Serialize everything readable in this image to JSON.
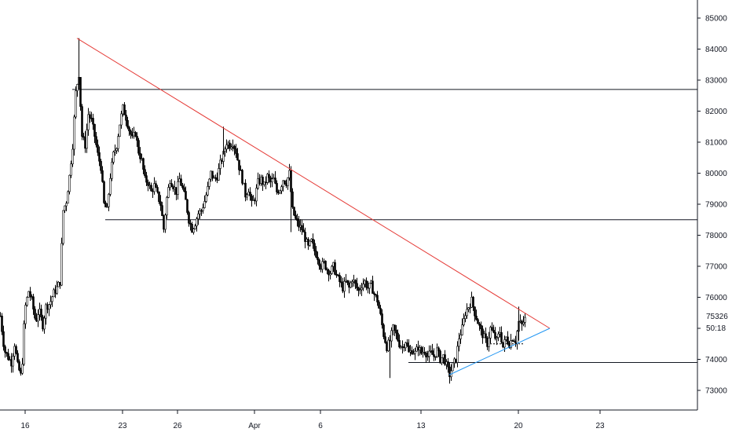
{
  "chart_data": {
    "type": "candlestick",
    "title": "",
    "xlabel": "",
    "ylabel": "",
    "ylim": [
      72000,
      85500
    ],
    "x_tick_labels": [
      "16",
      "23",
      "26",
      "Apr",
      "6",
      "13",
      "20",
      "23"
    ],
    "y_tick_labels": [
      "73000",
      "74000",
      "75000",
      "76000",
      "77000",
      "78000",
      "79000",
      "80000",
      "81000",
      "82000",
      "83000",
      "84000",
      "85000"
    ],
    "y_ticks": [
      73000,
      74000,
      75000,
      76000,
      77000,
      78000,
      79000,
      80000,
      81000,
      82000,
      83000,
      84000,
      85000
    ],
    "last_price": "75326",
    "countdown": "50:18",
    "grid": false,
    "colors": {
      "candle": "#000000",
      "resistance_line": "#e53935",
      "support_line": "#2196f3",
      "horizontal_levels": "#131722",
      "price_tag_bg": "#ffffff"
    },
    "horizontal_levels": [
      82700,
      78500,
      73900
    ],
    "close_path": [
      [
        0,
        75400
      ],
      [
        5,
        74300
      ],
      [
        9,
        74100
      ],
      [
        14,
        73900
      ],
      [
        18,
        74500
      ],
      [
        22,
        73800
      ],
      [
        27,
        73400
      ],
      [
        31,
        75600
      ],
      [
        36,
        76200
      ],
      [
        40,
        75900
      ],
      [
        45,
        75200
      ],
      [
        49,
        75600
      ],
      [
        54,
        75100
      ],
      [
        58,
        75700
      ],
      [
        63,
        75800
      ],
      [
        67,
        76100
      ],
      [
        72,
        76300
      ],
      [
        76,
        76500
      ],
      [
        80,
        78800
      ],
      [
        84,
        79100
      ],
      [
        88,
        79900
      ],
      [
        92,
        80900
      ],
      [
        96,
        82600
      ],
      [
        100,
        83200
      ],
      [
        104,
        81200
      ],
      [
        108,
        80900
      ],
      [
        112,
        81900
      ],
      [
        116,
        81700
      ],
      [
        120,
        81200
      ],
      [
        124,
        80600
      ],
      [
        128,
        80200
      ],
      [
        132,
        79000
      ],
      [
        136,
        78800
      ],
      [
        140,
        79900
      ],
      [
        144,
        80600
      ],
      [
        148,
        80900
      ],
      [
        152,
        81600
      ],
      [
        156,
        82100
      ],
      [
        160,
        81800
      ],
      [
        164,
        81400
      ],
      [
        168,
        81100
      ],
      [
        172,
        81300
      ],
      [
        176,
        80700
      ],
      [
        180,
        80400
      ],
      [
        184,
        79800
      ],
      [
        188,
        79700
      ],
      [
        192,
        79400
      ],
      [
        196,
        79600
      ],
      [
        200,
        79300
      ],
      [
        204,
        79000
      ],
      [
        208,
        78200
      ],
      [
        212,
        79200
      ],
      [
        216,
        79800
      ],
      [
        220,
        79600
      ],
      [
        224,
        79400
      ],
      [
        228,
        79800
      ],
      [
        232,
        79500
      ],
      [
        236,
        79100
      ],
      [
        240,
        78500
      ],
      [
        244,
        78200
      ],
      [
        248,
        78400
      ],
      [
        252,
        78700
      ],
      [
        256,
        78800
      ],
      [
        260,
        79100
      ],
      [
        264,
        79500
      ],
      [
        268,
        80000
      ],
      [
        272,
        79800
      ],
      [
        276,
        79900
      ],
      [
        280,
        80300
      ],
      [
        284,
        80600
      ],
      [
        288,
        81000
      ],
      [
        292,
        80900
      ],
      [
        296,
        81000
      ],
      [
        300,
        80700
      ],
      [
        304,
        80200
      ],
      [
        308,
        79800
      ],
      [
        312,
        79300
      ],
      [
        316,
        79500
      ],
      [
        320,
        79000
      ],
      [
        324,
        79200
      ],
      [
        328,
        79700
      ],
      [
        332,
        79800
      ],
      [
        336,
        79600
      ],
      [
        340,
        79900
      ],
      [
        344,
        79700
      ],
      [
        348,
        79800
      ],
      [
        352,
        79400
      ],
      [
        356,
        79500
      ],
      [
        360,
        79800
      ],
      [
        364,
        79700
      ],
      [
        368,
        80000
      ],
      [
        372,
        78800
      ],
      [
        376,
        78500
      ],
      [
        380,
        78300
      ],
      [
        384,
        78200
      ],
      [
        388,
        77900
      ],
      [
        392,
        77600
      ],
      [
        396,
        77800
      ],
      [
        400,
        77500
      ],
      [
        404,
        77300
      ],
      [
        408,
        77000
      ],
      [
        412,
        77100
      ],
      [
        416,
        76900
      ],
      [
        420,
        76800
      ],
      [
        424,
        77000
      ],
      [
        428,
        76700
      ],
      [
        432,
        76500
      ],
      [
        436,
        76300
      ],
      [
        440,
        76500
      ],
      [
        444,
        76300
      ],
      [
        448,
        76600
      ],
      [
        452,
        76400
      ],
      [
        456,
        76200
      ],
      [
        460,
        76400
      ],
      [
        464,
        76500
      ],
      [
        468,
        76300
      ],
      [
        472,
        76400
      ],
      [
        476,
        76100
      ],
      [
        480,
        75900
      ],
      [
        484,
        75400
      ],
      [
        488,
        74800
      ],
      [
        492,
        74400
      ],
      [
        496,
        74600
      ],
      [
        500,
        75000
      ],
      [
        504,
        74800
      ],
      [
        508,
        74500
      ],
      [
        512,
        74400
      ],
      [
        516,
        74600
      ],
      [
        520,
        74200
      ],
      [
        524,
        74300
      ],
      [
        528,
        74200
      ],
      [
        532,
        74400
      ],
      [
        536,
        74200
      ],
      [
        540,
        74300
      ],
      [
        544,
        74100
      ],
      [
        548,
        74200
      ],
      [
        552,
        74100
      ],
      [
        556,
        74300
      ],
      [
        560,
        74000
      ],
      [
        564,
        74100
      ],
      [
        568,
        73800
      ],
      [
        572,
        73500
      ],
      [
        576,
        73800
      ],
      [
        580,
        74000
      ],
      [
        584,
        74700
      ],
      [
        588,
        75000
      ],
      [
        592,
        75500
      ],
      [
        596,
        75700
      ],
      [
        600,
        75900
      ],
      [
        604,
        75500
      ],
      [
        608,
        75200
      ],
      [
        612,
        74900
      ],
      [
        616,
        74700
      ],
      [
        620,
        74500
      ],
      [
        624,
        75000
      ],
      [
        628,
        74800
      ],
      [
        632,
        74600
      ],
      [
        636,
        74900
      ],
      [
        640,
        74400
      ],
      [
        644,
        74700
      ],
      [
        648,
        74500
      ],
      [
        652,
        74700
      ],
      [
        656,
        74600
      ],
      [
        660,
        75200
      ],
      [
        664,
        75100
      ],
      [
        668,
        75300
      ]
    ],
    "resistance_line": [
      [
        98,
        84350
      ],
      [
        700,
        75000
      ]
    ],
    "support_line": [
      [
        572,
        73500
      ],
      [
        700,
        75000
      ]
    ]
  }
}
